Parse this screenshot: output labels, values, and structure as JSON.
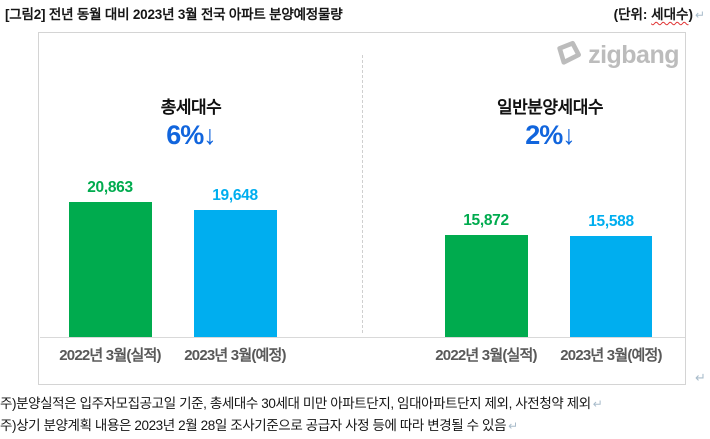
{
  "title": {
    "label": "[그림2] 전년 동월 대비 2023년 3월 전국 아파트 분양예정물량",
    "unit": {
      "prefix": "(단위: ",
      "word": "세대수",
      "suffix": ")"
    }
  },
  "logo": {
    "brand": "zigbang"
  },
  "marks": {
    "return_mark": "↵"
  },
  "chart_data": {
    "type": "bar",
    "unit": "세대수",
    "ylim": [
      0,
      22000
    ],
    "grid": false,
    "legend": "none",
    "groups": [
      {
        "title": "총세대수",
        "change": "6%↓",
        "categories": [
          "2022년 3월(실적)",
          "2023년 3월(예정)"
        ],
        "values": [
          20863,
          19648
        ],
        "display_values": [
          "20,863",
          "19,648"
        ]
      },
      {
        "title": "일반분양세대수",
        "change": "2%↓",
        "categories": [
          "2022년 3월(실적)",
          "2023년 3월(예정)"
        ],
        "values": [
          15872,
          15588
        ],
        "display_values": [
          "15,872",
          "15,588"
        ]
      }
    ],
    "colors": {
      "actual": "#00ab4e",
      "planned": "#00aeef",
      "change_text": "#1165dd",
      "axis": "#d9d9d9",
      "logo_gray": "#bcbcbc"
    }
  },
  "notes": [
    "주)분양실적은 입주자모집공고일 기준, 총세대수 30세대 미만 아파트단지, 임대아파트단지 제외, 사전청약 제외",
    "주)상기 분양계획 내용은 2023년 2월 28일 조사기준으로 공급자 사정 등에 따라 변경될 수 있음"
  ]
}
